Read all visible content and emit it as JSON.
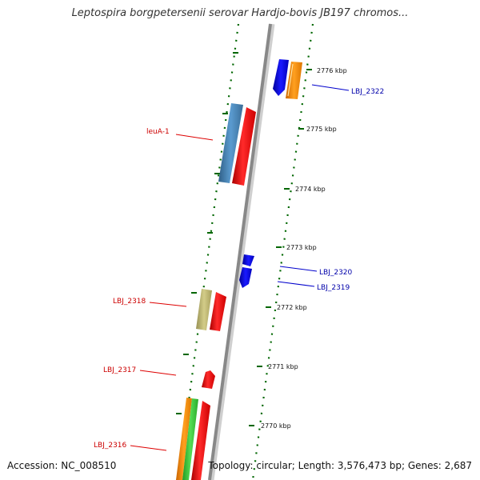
{
  "title": "Leptospira borgpetersenii serovar Hardjo-bovis JB197 chromos...",
  "footer": {
    "accession": "Accession: NC_008510",
    "summary": "Topology: circular; Length: 3,576,473 bp; Genes: 2,687"
  },
  "ticks": [
    "2776 kbp",
    "2775 kbp",
    "2774 kbp",
    "2773 kbp",
    "2772 kbp",
    "2771 kbp",
    "2770 kbp"
  ],
  "labels": {
    "leuA": "leuA-1",
    "lbj2322": "LBJ_2322",
    "lbj2320": "LBJ_2320",
    "lbj2319": "LBJ_2319",
    "lbj2318": "LBJ_2318",
    "lbj2317": "LBJ_2317",
    "lbj2316": "LBJ_2316"
  },
  "colors": {
    "red": "#ff0000",
    "blue": "#0000ee",
    "steelblue": "#4682b4",
    "orange": "#ff8c00",
    "khaki": "#bdb76b",
    "green": "#33cc33",
    "tick": "#006600",
    "backbone": "#888888"
  }
}
